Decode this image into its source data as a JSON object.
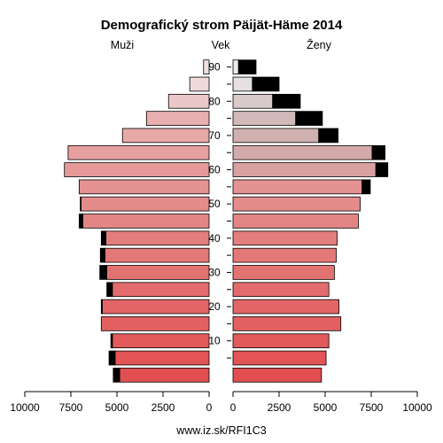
{
  "chart_data": {
    "type": "bar",
    "title": "Demografický strom Päijät-Häme 2014",
    "left_label": "Muži",
    "center_label": "Vek",
    "right_label": "Ženy",
    "footer": "www.iz.sk/RFI1C3",
    "age_groups": [
      "0-4",
      "5-9",
      "10-14",
      "15-19",
      "20-24",
      "25-29",
      "30-34",
      "35-39",
      "40-44",
      "45-49",
      "50-54",
      "55-59",
      "60-64",
      "65-69",
      "70-74",
      "75-79",
      "80-84",
      "85-89",
      "90+"
    ],
    "age_tick_labels": [
      "10",
      "20",
      "30",
      "40",
      "50",
      "60",
      "70",
      "80",
      "90"
    ],
    "age_tick_groups": [
      2,
      4,
      6,
      8,
      10,
      12,
      14,
      16,
      18
    ],
    "x_ticks_left": [
      "10000",
      "7500",
      "5000",
      "2500",
      "0"
    ],
    "x_ticks_right": [
      "0",
      "2500",
      "5000",
      "7500",
      "10000"
    ],
    "xlim": [
      0,
      10000
    ],
    "series": [
      {
        "name": "Muži",
        "base": [
          4850,
          5100,
          5250,
          5850,
          5800,
          5250,
          5550,
          5650,
          5600,
          6850,
          6950,
          7050,
          7850,
          7650,
          4700,
          3400,
          2200,
          1050,
          300
        ],
        "excess": [
          350,
          330,
          80,
          0,
          50,
          300,
          380,
          250,
          250,
          200,
          40,
          0,
          0,
          0,
          0,
          0,
          0,
          0,
          0
        ]
      },
      {
        "name": "Ženy",
        "base": [
          4800,
          5050,
          5200,
          5850,
          5750,
          5200,
          5500,
          5600,
          5650,
          6800,
          6900,
          7000,
          7750,
          7550,
          4650,
          3400,
          2150,
          1050,
          300
        ],
        "excess": [
          0,
          0,
          0,
          0,
          0,
          0,
          0,
          0,
          0,
          0,
          0,
          450,
          650,
          700,
          1050,
          1450,
          1500,
          1450,
          950
        ]
      }
    ],
    "colors": {
      "male_bar": [
        "#e24f50",
        "#e25455",
        "#e25a5b",
        "#e26061",
        "#e26667",
        "#e26c6d",
        "#e37272",
        "#e37878",
        "#e37e7e",
        "#e38585",
        "#e48b8b",
        "#e49292",
        "#e59999",
        "#e6a0a0",
        "#e7a8a8",
        "#e8b0b0",
        "#eac8c8",
        "#eedada",
        "#f0e0e0"
      ],
      "female_bar": [
        "#e24f50",
        "#e25455",
        "#e25a5b",
        "#e26061",
        "#e26667",
        "#e26c6d",
        "#e37272",
        "#e37878",
        "#e37e7e",
        "#e38585",
        "#e48b8b",
        "#e49292",
        "#d9a0a0",
        "#d4a9a9",
        "#d1b0b0",
        "#d3baba",
        "#d8caca",
        "#e6e0e0",
        "#eeeaea"
      ],
      "excess": "#000000",
      "outline": "#000000"
    }
  }
}
